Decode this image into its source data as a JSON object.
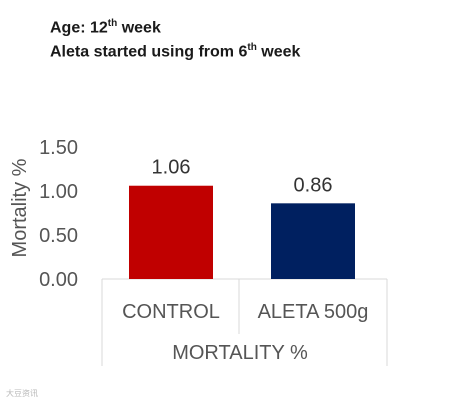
{
  "header": {
    "line1_prefix": "Age: 12",
    "line1_sup": "th",
    "line1_suffix": " week",
    "line2_prefix": "Aleta started using from 6",
    "line2_sup": "th",
    "line2_suffix": " week"
  },
  "chart_data": {
    "type": "bar",
    "categories": [
      "CONTROL",
      "ALETA 500g"
    ],
    "values": [
      1.06,
      0.86
    ],
    "data_labels": [
      "1.06",
      "0.86"
    ],
    "colors": [
      "#c00000",
      "#002060"
    ],
    "ylabel": "Mortality %",
    "xlabel": "MORTALITY %",
    "ylim": [
      0,
      1.5
    ],
    "yticks": [
      "0.00",
      "0.50",
      "1.00",
      "1.50"
    ],
    "ytick_values": [
      0,
      0.5,
      1.0,
      1.5
    ],
    "grid": false
  },
  "watermark": "大豆资讯"
}
